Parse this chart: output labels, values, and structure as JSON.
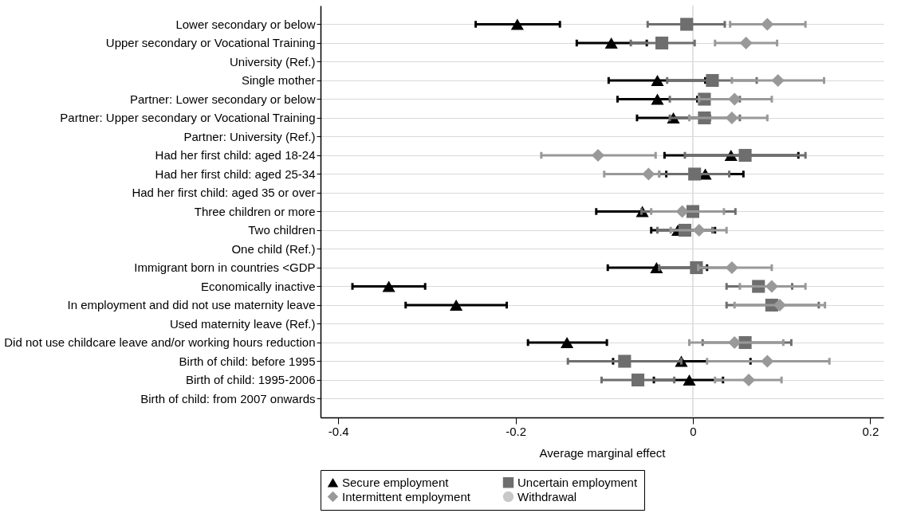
{
  "chart_data": {
    "type": "scatter",
    "orientation": "horizontal",
    "xlabel": "Average marginal effect",
    "categories": [
      "Lower secondary or below",
      "Upper secondary or Vocational Training",
      "University (Ref.)",
      "Single mother",
      "Partner: Lower secondary or below",
      "Partner: Upper secondary or Vocational Training",
      "Partner: University (Ref.)",
      "Had her first child: aged 18-24 ",
      "Had her first child: aged 25-34",
      "Had her first child: aged 35 or over ",
      "Three children or more",
      "Two children",
      "One child (Ref.)",
      "Immigrant born in countries <GDP",
      "Economically inactive",
      "In employment and did not use maternity leave",
      "Used maternity leave (Ref.)",
      "Did not use childcare leave and/or working hours reduction",
      "Birth of child: before 1995",
      "Birth of child: 1995-2006",
      "Birth of child: from 2007 onwards"
    ],
    "series": [
      {
        "name": "Secure employment",
        "color": "#000000",
        "marker": "triangle",
        "values": [
          -0.198,
          -0.092,
          null,
          -0.04,
          -0.04,
          -0.022,
          null,
          0.043,
          0.014,
          null,
          -0.057,
          -0.017,
          null,
          -0.041,
          -0.343,
          -0.267,
          null,
          -0.142,
          -0.013,
          -0.004,
          null
        ],
        "errors": [
          [
            -0.245,
            -0.15
          ],
          [
            -0.131,
            -0.052
          ],
          null,
          [
            -0.095,
            0.014
          ],
          [
            -0.085,
            0.005
          ],
          [
            -0.063,
            0.019
          ],
          null,
          [
            -0.032,
            0.119
          ],
          [
            -0.03,
            0.057
          ],
          null,
          [
            -0.109,
            -0.005
          ],
          [
            -0.047,
            0.025
          ],
          null,
          [
            -0.096,
            0.016
          ],
          [
            -0.384,
            -0.302
          ],
          [
            -0.324,
            -0.21
          ],
          null,
          [
            -0.186,
            -0.097
          ],
          [
            -0.09,
            0.065
          ],
          [
            -0.044,
            0.034
          ],
          null
        ]
      },
      {
        "name": "Uncertain employment",
        "color": "#6e6e6e",
        "marker": "square",
        "values": [
          -0.007,
          -0.035,
          null,
          0.022,
          0.013,
          0.013,
          null,
          0.059,
          0.002,
          null,
          0.0,
          -0.009,
          null,
          0.004,
          0.074,
          0.089,
          null,
          0.059,
          -0.077,
          -0.062,
          null
        ],
        "errors": [
          [
            -0.051,
            0.036
          ],
          [
            -0.07,
            0.002
          ],
          null,
          [
            -0.029,
            0.072
          ],
          [
            -0.026,
            0.053
          ],
          [
            -0.026,
            0.053
          ],
          null,
          [
            -0.009,
            0.127
          ],
          [
            -0.038,
            0.041
          ],
          null,
          [
            -0.058,
            0.048
          ],
          [
            -0.04,
            0.022
          ],
          null,
          [
            -0.038,
            0.046
          ],
          [
            0.038,
            0.112
          ],
          [
            0.038,
            0.142
          ],
          null,
          [
            0.011,
            0.111
          ],
          [
            -0.141,
            -0.013
          ],
          [
            -0.103,
            -0.021
          ],
          null
        ]
      },
      {
        "name": "Intermittent employment",
        "color": "#999999",
        "marker": "diamond",
        "values": [
          0.084,
          0.06,
          null,
          0.096,
          0.047,
          0.044,
          null,
          -0.107,
          -0.05,
          null,
          -0.012,
          0.007,
          null,
          0.044,
          0.089,
          0.098,
          null,
          0.047,
          0.084,
          0.063,
          null
        ],
        "errors": [
          [
            0.042,
            0.127
          ],
          [
            0.025,
            0.095
          ],
          null,
          [
            0.044,
            0.148
          ],
          [
            0.007,
            0.089
          ],
          [
            -0.004,
            0.084
          ],
          null,
          [
            -0.171,
            -0.042
          ],
          [
            -0.1,
            -0.038
          ],
          null,
          [
            -0.047,
            0.035
          ],
          [
            -0.025,
            0.038
          ],
          null,
          [
            0.006,
            0.089
          ],
          [
            0.053,
            0.127
          ],
          [
            0.047,
            0.149
          ],
          null,
          [
            -0.004,
            0.102
          ],
          [
            0.016,
            0.154
          ],
          [
            0.025,
            0.1
          ],
          null
        ]
      },
      {
        "name": "Withdrawal",
        "color": "#c8c8c8",
        "marker": "circle",
        "values": [
          null,
          null,
          null,
          null,
          null,
          null,
          null,
          null,
          null,
          null,
          null,
          null,
          null,
          null,
          null,
          null,
          null,
          null,
          null,
          null,
          null
        ],
        "errors": [
          null,
          null,
          null,
          null,
          null,
          null,
          null,
          null,
          null,
          null,
          null,
          null,
          null,
          null,
          null,
          null,
          null,
          null,
          null,
          null,
          null
        ]
      }
    ],
    "xlim": [
      -0.42,
      0.215
    ],
    "xticks": [
      -0.4,
      -0.2,
      0,
      0.2
    ],
    "ref_lines": [
      {
        "axis": "x",
        "value": 0,
        "color": "#d9d9d9"
      }
    ],
    "grid": "y",
    "legend": "bottom"
  }
}
